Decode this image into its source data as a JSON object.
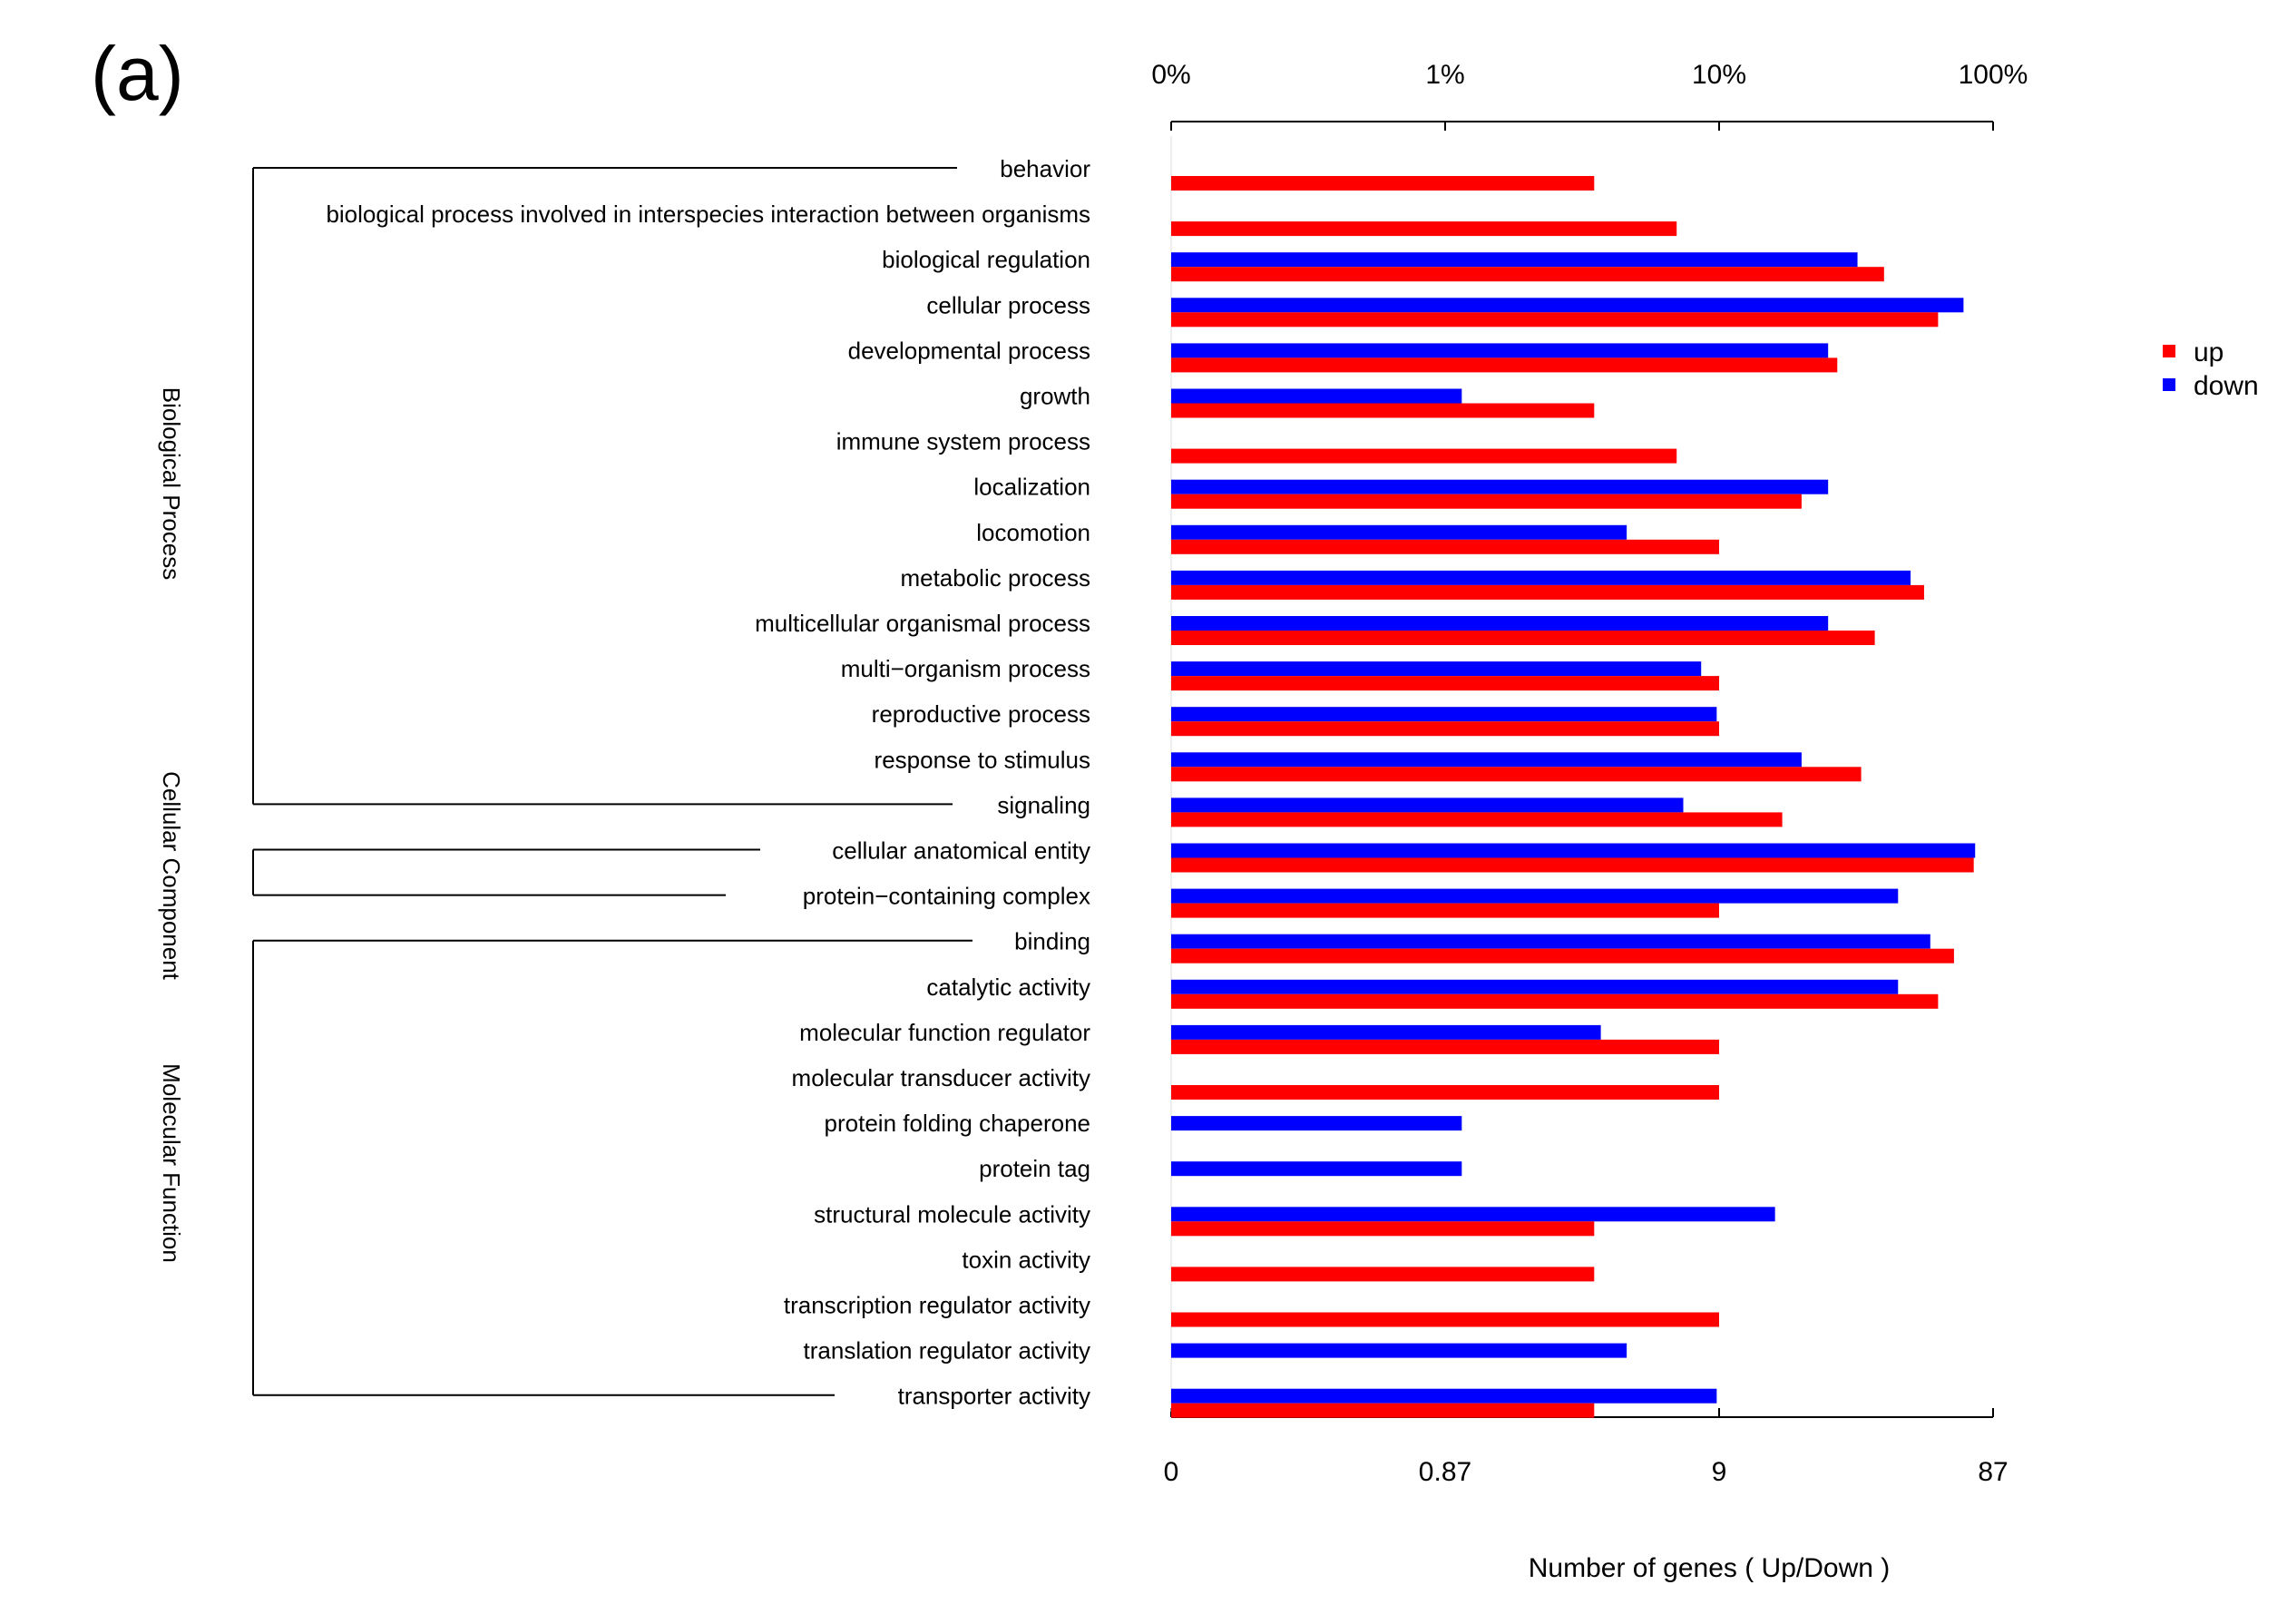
{
  "chart_data": {
    "type": "bar",
    "orientation": "horizontal",
    "panel_label": "(a)",
    "xlabel": "Number of genes ( Up/Down )",
    "top_axis_ticks": [
      "0%",
      "1%",
      "10%",
      "100%"
    ],
    "bottom_axis_ticks": [
      "0",
      "0.87",
      "9",
      "87"
    ],
    "scale": "log-like (0, 0.87, 9, 87 gene counts)",
    "groups": [
      {
        "name": "Biological Process",
        "start": 0,
        "end": 14
      },
      {
        "name": "Cellular Component",
        "start": 15,
        "end": 16
      },
      {
        "name": "Molecular Function",
        "start": 17,
        "end": 27
      }
    ],
    "categories": [
      "behavior",
      "biological process involved in interspecies interaction between organisms",
      "biological regulation",
      "cellular process",
      "developmental process",
      "growth",
      "immune system process",
      "localization",
      "locomotion",
      "metabolic process",
      "multicellular organismal process",
      "multi−organism process",
      "reproductive process",
      "response to stimulus",
      "signaling",
      "cellular anatomical entity",
      "protein−containing complex",
      "binding",
      "catalytic activity",
      "molecular function regulator",
      "molecular transducer activity",
      "protein folding chaperone",
      "protein tag",
      "structural molecule activity",
      "toxin activity",
      "transcription regulator activity",
      "translation regulator activity",
      "transporter activity"
    ],
    "series": [
      {
        "name": "up",
        "color": "#ff0000",
        "values_pct": [
          3.5,
          7,
          40,
          63,
          27,
          3.5,
          7,
          20,
          10,
          56,
          37,
          10,
          10,
          33,
          17,
          85,
          10,
          72,
          63,
          10,
          10,
          0,
          0,
          3.5,
          3.5,
          10,
          0,
          3.5
        ]
      },
      {
        "name": "down",
        "color": "#0000ff",
        "values_pct": [
          0,
          0,
          32,
          78,
          25,
          1.15,
          0,
          25,
          4.6,
          50,
          25,
          8.6,
          9.8,
          20,
          7.4,
          86,
          45,
          59,
          45,
          3.7,
          0,
          1.15,
          1.15,
          16,
          0,
          0,
          4.6,
          9.8
        ]
      }
    ],
    "legend": {
      "position": "right",
      "entries": [
        "up",
        "down"
      ]
    }
  }
}
